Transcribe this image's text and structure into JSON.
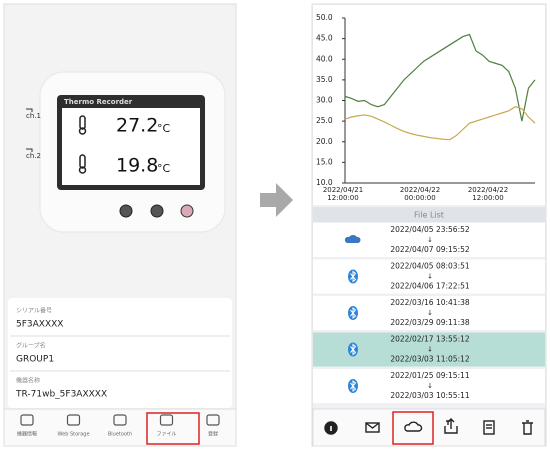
{
  "left_screen": {
    "device": {
      "title": "Thermo Recorder",
      "channels": [
        {
          "label": "ch.1",
          "value": "27.2",
          "unit": "°C"
        },
        {
          "label": "ch.2",
          "value": "19.8",
          "unit": "°C"
        }
      ]
    },
    "info": [
      {
        "label": "シリアル番号",
        "value": "5F3AXXXX"
      },
      {
        "label": "グループ名",
        "value": "GROUP1"
      },
      {
        "label": "機器名称",
        "value": "TR-71wb_5F3AXXXX"
      }
    ],
    "nav": [
      "機器情報",
      "Web Storage",
      "Bluetooth",
      "ファイル",
      "登録"
    ]
  },
  "right_screen": {
    "chart": {
      "type": "line",
      "ylim": [
        10,
        50
      ],
      "yticks": [
        {
          "value": 10,
          "label": "10.0"
        },
        {
          "value": 15,
          "label": "15.0"
        },
        {
          "value": 20,
          "label": "20.0"
        },
        {
          "value": 25,
          "label": "25.0"
        },
        {
          "value": 30,
          "label": "30.0"
        },
        {
          "value": 35,
          "label": "35.0"
        },
        {
          "value": 40,
          "label": "40.0"
        },
        {
          "value": 45,
          "label": "45.0"
        },
        {
          "value": 50,
          "label": "50.0"
        }
      ],
      "xticks": [
        [
          "2022/04/21",
          "12:00:00"
        ],
        [
          "2022/04/22",
          "00:00:00"
        ],
        [
          "2022/04/22",
          "12:00:00"
        ]
      ],
      "series": [
        {
          "color": "#4f7f3f",
          "values": [
            31,
            30.5,
            29.8,
            30,
            29,
            28.5,
            29,
            31,
            33,
            35,
            36.5,
            38,
            39.5,
            40.5,
            41.5,
            42.5,
            43.5,
            44.5,
            45.5,
            46,
            42,
            41,
            39.5,
            39,
            38.5,
            37,
            33,
            25,
            33,
            35
          ]
        },
        {
          "color": "#c8a850",
          "values": [
            25.5,
            26,
            26.3,
            26.5,
            26.2,
            25.5,
            24.8,
            24,
            23.2,
            22.5,
            22,
            21.6,
            21.3,
            21,
            20.8,
            20.6,
            20.5,
            21.5,
            23,
            24.5,
            25,
            25.5,
            26,
            26.5,
            27,
            27.5,
            28.5,
            28,
            26,
            24.5
          ]
        }
      ]
    },
    "file_list": {
      "title": "File List",
      "separator": "↓",
      "items": [
        {
          "source": "cloud",
          "start": "2022/04/05 23:56:52",
          "end": "2022/04/07 09:15:52"
        },
        {
          "source": "bluetooth",
          "start": "2022/04/05 08:03:51",
          "end": "2022/04/06 17:22:51"
        },
        {
          "source": "bluetooth",
          "start": "2022/03/16 10:41:38",
          "end": "2022/03/29 09:11:38"
        },
        {
          "source": "bluetooth",
          "start": "2022/02/17 13:55:12",
          "end": "2022/03/03 11:05:12",
          "selected": true
        },
        {
          "source": "bluetooth",
          "start": "2022/01/25 09:15:11",
          "end": "2022/03/03 10:55:11"
        }
      ]
    }
  }
}
